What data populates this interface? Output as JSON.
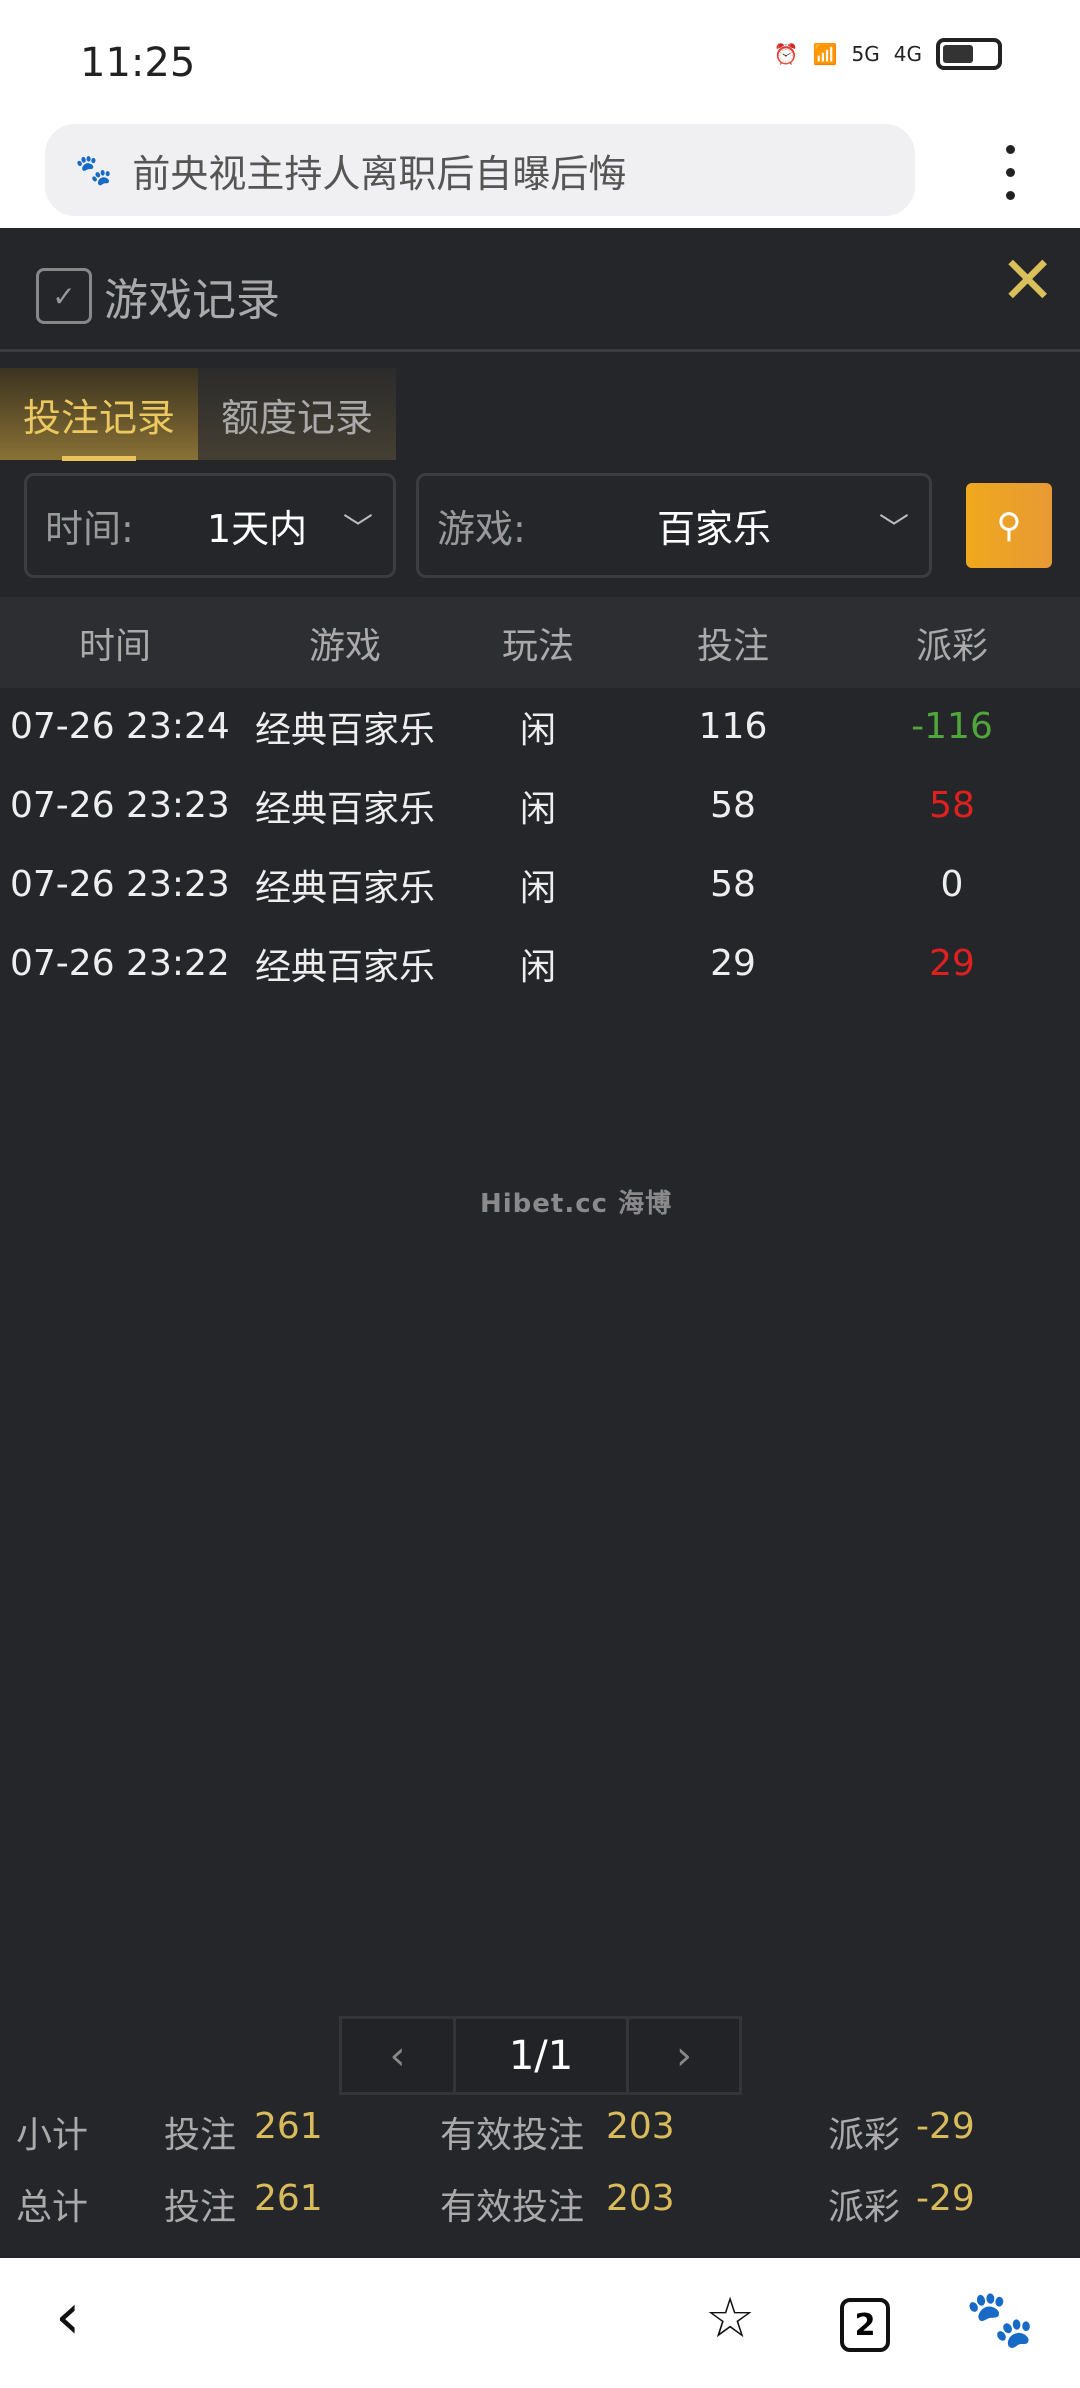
{
  "status_bar": {
    "time": "11:25",
    "network1": "5G",
    "network2": "4G"
  },
  "browser": {
    "search_query": "前央视主持人离职后自曝后悔",
    "tabs_count": "2"
  },
  "panel": {
    "title": "游戏记录",
    "tabs": [
      {
        "label": "投注记录",
        "active": true
      },
      {
        "label": "额度记录",
        "active": false
      }
    ],
    "filters": {
      "time_label": "时间:",
      "time_value": "1天内",
      "game_label": "游戏:",
      "game_value": "百家乐"
    },
    "table": {
      "headers": [
        "时间",
        "游戏",
        "玩法",
        "投注",
        "派彩"
      ],
      "rows": [
        {
          "time": "07-26 23:24",
          "game": "经典百家乐",
          "play": "闲",
          "bet": "116",
          "payout": "-116"
        },
        {
          "time": "07-26 23:23",
          "game": "经典百家乐",
          "play": "闲",
          "bet": "58",
          "payout": "58"
        },
        {
          "time": "07-26 23:23",
          "game": "经典百家乐",
          "play": "闲",
          "bet": "58",
          "payout": "0"
        },
        {
          "time": "07-26 23:22",
          "game": "经典百家乐",
          "play": "闲",
          "bet": "29",
          "payout": "29"
        }
      ]
    },
    "watermark": "Hibet.cc 海博",
    "pagination": {
      "prev": "‹",
      "page": "1/1",
      "next": "›"
    },
    "summary": [
      {
        "label": "小计",
        "bet_label": "投注",
        "bet": "261",
        "valid_label": "有效投注",
        "valid": "203",
        "payout_label": "派彩",
        "payout": "-29"
      },
      {
        "label": "总计",
        "bet_label": "投注",
        "bet": "261",
        "valid_label": "有效投注",
        "valid": "203",
        "payout_label": "派彩",
        "payout": "-29"
      }
    ]
  },
  "colors": {
    "accent": "#e8c25a",
    "background": "#25262a",
    "win": "#e0201e",
    "loss": "#4fa63a",
    "search": "#f0a81c"
  }
}
